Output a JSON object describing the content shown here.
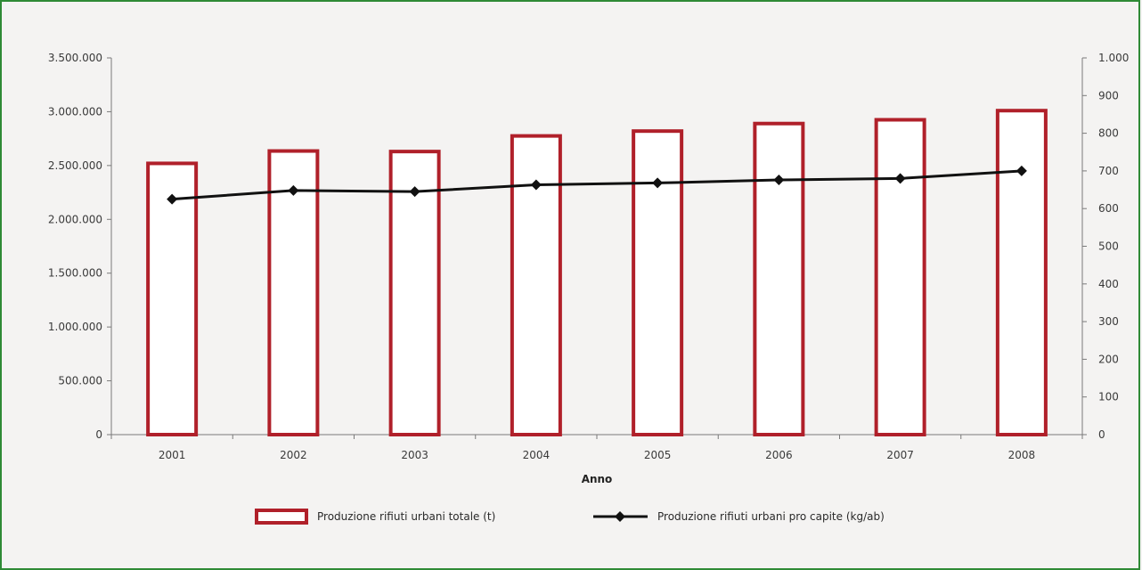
{
  "chart_data": {
    "type": "bar",
    "categories": [
      "2001",
      "2002",
      "2003",
      "2004",
      "2005",
      "2006",
      "2007",
      "2008"
    ],
    "xlabel": "Anno",
    "y_left": {
      "range": [
        0,
        3500000
      ],
      "tick_values": [
        0,
        500000,
        1000000,
        1500000,
        2000000,
        2500000,
        3000000,
        3500000
      ],
      "tick_labels": [
        "0",
        "500.000",
        "1.000.000",
        "1.500.000",
        "2.000.000",
        "2.500.000",
        "3.000.000",
        "3.500.000"
      ]
    },
    "y_right": {
      "range": [
        0,
        1000
      ],
      "tick_values": [
        0,
        100,
        200,
        300,
        400,
        500,
        600,
        700,
        800,
        900,
        1000
      ],
      "tick_labels": [
        "0",
        "100",
        "200",
        "300",
        "400",
        "500",
        "600",
        "700",
        "800",
        "900",
        "1.000"
      ]
    },
    "series": [
      {
        "name": "Produzione rifiuti urbani totale (t)",
        "type": "bar",
        "axis": "left",
        "color": "#b0202a",
        "values": [
          2520000,
          2635000,
          2630000,
          2775000,
          2820000,
          2890000,
          2925000,
          3010000
        ]
      },
      {
        "name": "Produzione rifiuti urbani pro capite (kg/ab)",
        "type": "line",
        "axis": "right",
        "color": "#111111",
        "marker": "diamond",
        "values": [
          625,
          648,
          645,
          663,
          668,
          676,
          680,
          700
        ]
      }
    ],
    "legend_position": "bottom",
    "grid": false
  }
}
